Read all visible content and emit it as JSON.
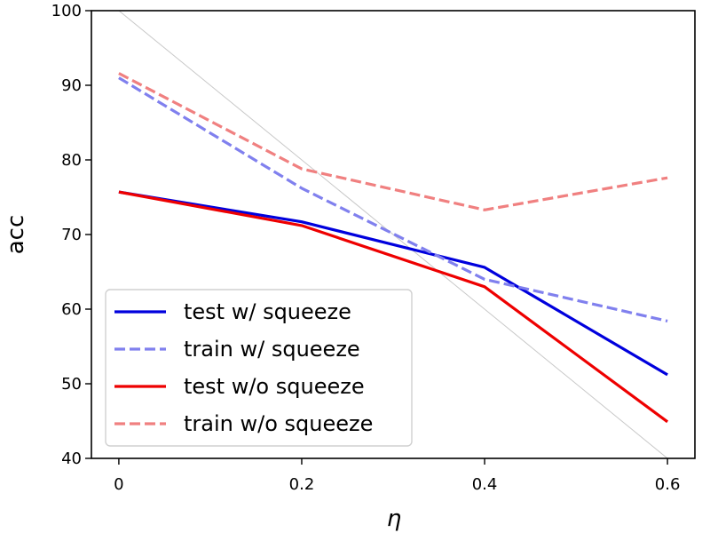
{
  "chart_data": {
    "type": "line",
    "title": "",
    "xlabel": "η",
    "ylabel": "acc",
    "xlim": [
      -0.03,
      0.63
    ],
    "ylim": [
      40,
      100
    ],
    "xticks": [
      0,
      0.2,
      0.4,
      0.6
    ],
    "xtick_labels": [
      "0",
      "0.2",
      "0.4",
      "0.6"
    ],
    "yticks": [
      40,
      50,
      60,
      70,
      80,
      90,
      100
    ],
    "ytick_labels": [
      "40",
      "50",
      "60",
      "70",
      "80",
      "90",
      "100"
    ],
    "grid": false,
    "legend_position": "lower-left",
    "x": [
      0,
      0.2,
      0.4,
      0.6
    ],
    "reference_line": {
      "x": [
        0,
        0.6
      ],
      "y": [
        100,
        40
      ],
      "color": "#c8c8c8"
    },
    "series": [
      {
        "name": "test w/ squeeze",
        "values": [
          75.7,
          71.7,
          65.6,
          51.2
        ],
        "color": "#0000dd",
        "style": "solid"
      },
      {
        "name": "train w/ squeeze",
        "values": [
          91.0,
          76.2,
          64.0,
          58.4
        ],
        "color": "#8080ee",
        "style": "dashed"
      },
      {
        "name": "test w/o squeeze",
        "values": [
          75.7,
          71.2,
          63.0,
          44.9
        ],
        "color": "#ee0000",
        "style": "solid"
      },
      {
        "name": "train w/o squeeze",
        "values": [
          91.6,
          78.8,
          73.3,
          77.6
        ],
        "color": "#f08080",
        "style": "dashed"
      }
    ]
  }
}
